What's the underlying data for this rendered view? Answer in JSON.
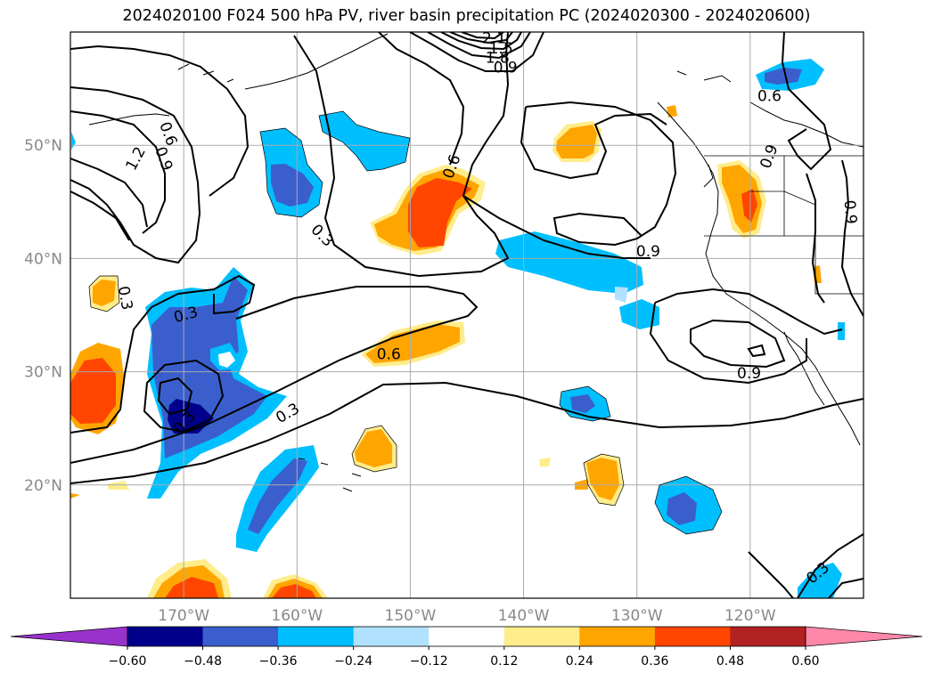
{
  "title": "2024020100 F024 500 hPa PV, river basin precipitation PC (2024020300 - 2024020600)",
  "map": {
    "lon_range": [
      -180,
      -110
    ],
    "lat_range": [
      10,
      60
    ],
    "lon_ticks": [
      {
        "value": -170,
        "label": "170°W"
      },
      {
        "value": -160,
        "label": "160°W"
      },
      {
        "value": -150,
        "label": "150°W"
      },
      {
        "value": -140,
        "label": "140°W"
      },
      {
        "value": -130,
        "label": "130°W"
      },
      {
        "value": -120,
        "label": "120°W"
      }
    ],
    "lat_ticks": [
      {
        "value": 20,
        "label": "20°N"
      },
      {
        "value": 30,
        "label": "30°N"
      },
      {
        "value": 40,
        "label": "40°N"
      },
      {
        "value": 50,
        "label": "50°N"
      }
    ],
    "grid": true
  },
  "colorbar": {
    "levels": [
      -0.6,
      -0.48,
      -0.36,
      -0.24,
      -0.12,
      0.12,
      0.24,
      0.36,
      0.48,
      0.6
    ],
    "tick_labels": [
      "−0.60",
      "−0.48",
      "−0.36",
      "−0.24",
      "−0.12",
      "0.12",
      "0.24",
      "0.36",
      "0.48",
      "0.60"
    ],
    "colors": [
      "#9932cc",
      "#00008b",
      "#3a5fcd",
      "#00bfff",
      "#b0e2ff",
      "#ffffff",
      "#ffec8b",
      "#ffa500",
      "#ff4500",
      "#b22222",
      "#ff88aa"
    ],
    "extend": "both"
  },
  "contour_labels": [
    {
      "text": "0.6",
      "lon": -171.4,
      "lat": 51.0,
      "rot": 70
    },
    {
      "text": "0.9",
      "lon": -171.8,
      "lat": 48.8,
      "rot": 70
    },
    {
      "text": "1.2",
      "lon": -174.2,
      "lat": 48.8,
      "rot": -62
    },
    {
      "text": "0.3",
      "lon": -157.8,
      "lat": 42.0,
      "rot": 45
    },
    {
      "text": "0.6",
      "lon": -146.3,
      "lat": 48.1,
      "rot": -70
    },
    {
      "text": "0.9",
      "lon": -141.6,
      "lat": 56.8,
      "rot": 0
    },
    {
      "text": "1.5",
      "lon": -142.0,
      "lat": 58.5,
      "rot": 0
    },
    {
      "text": "1.8",
      "lon": -142.3,
      "lat": 57.7,
      "rot": 0
    },
    {
      "text": "2.1",
      "lon": -142.6,
      "lat": 59.4,
      "rot": 0
    },
    {
      "text": "0.9",
      "lon": -129.0,
      "lat": 40.6,
      "rot": 0
    },
    {
      "text": "0.6",
      "lon": -118.3,
      "lat": 54.3,
      "rot": 0
    },
    {
      "text": "0.9",
      "lon": -118.3,
      "lat": 49.0,
      "rot": -70
    },
    {
      "text": "0.9",
      "lon": -111.2,
      "lat": 44.1,
      "rot": 85
    },
    {
      "text": "0.3",
      "lon": -175.2,
      "lat": 36.5,
      "rot": 80
    },
    {
      "text": "0.3",
      "lon": -169.8,
      "lat": 35.0,
      "rot": -15
    },
    {
      "text": "0.6",
      "lon": -151.9,
      "lat": 31.5,
      "rot": 0
    },
    {
      "text": "0.3",
      "lon": -160.8,
      "lat": 26.3,
      "rot": -30
    },
    {
      "text": "0.3",
      "lon": -169.9,
      "lat": 25.5,
      "rot": -50
    },
    {
      "text": "0.9",
      "lon": -120.1,
      "lat": 29.8,
      "rot": 0
    },
    {
      "text": "0.3",
      "lon": -114.0,
      "lat": 12.2,
      "rot": -40
    }
  ],
  "colors": {
    "contour": "#000000",
    "grid": "#aaaaaa",
    "coast": "#000000"
  }
}
